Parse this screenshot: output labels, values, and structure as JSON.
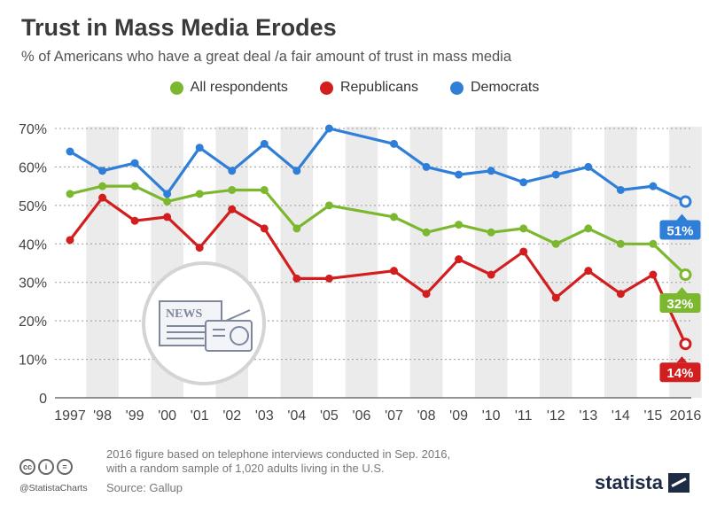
{
  "title": "Trust in Mass Media Erodes",
  "subtitle": "% of Americans who have a great deal /a fair amount of trust in mass media",
  "legend": [
    {
      "label": "All respondents",
      "color": "#7cb82f"
    },
    {
      "label": "Republicans",
      "color": "#d21e1e"
    },
    {
      "label": "Democrats",
      "color": "#2f7ed8"
    }
  ],
  "footer": {
    "note_line1": "2016 figure based on telephone interviews conducted in Sep. 2016,",
    "note_line2": "with a random sample of 1,020 adults living in the U.S.",
    "source": "Source: Gallup",
    "handle": "@StatistaCharts",
    "brand": "statista",
    "cc_icons": [
      "cc",
      "i",
      "="
    ]
  },
  "illustration": {
    "label": "NEWS"
  },
  "chart_data": {
    "type": "line",
    "x": [
      "1997",
      "'98",
      "'99",
      "'00",
      "'01",
      "'02",
      "'03",
      "'04",
      "'05",
      "'06",
      "'07",
      "'08",
      "'09",
      "'10",
      "'11",
      "'12",
      "'13",
      "'14",
      "'15",
      "2016"
    ],
    "ylim": [
      0,
      70
    ],
    "yticks": [
      "0",
      "10%",
      "20%",
      "30%",
      "40%",
      "50%",
      "60%",
      "70%"
    ],
    "grid": true,
    "series": [
      {
        "name": "All respondents",
        "color": "#7cb82f",
        "values": [
          53,
          55,
          55,
          51,
          53,
          54,
          54,
          44,
          50,
          null,
          47,
          43,
          45,
          43,
          44,
          40,
          44,
          40,
          40,
          32
        ],
        "end_label": "32%"
      },
      {
        "name": "Republicans",
        "color": "#d21e1e",
        "values": [
          41,
          52,
          46,
          47,
          39,
          49,
          44,
          31,
          31,
          null,
          33,
          27,
          36,
          32,
          38,
          26,
          33,
          27,
          32,
          14
        ],
        "end_label": "14%"
      },
      {
        "name": "Democrats",
        "color": "#2f7ed8",
        "values": [
          64,
          59,
          61,
          53,
          65,
          59,
          66,
          59,
          70,
          null,
          66,
          60,
          58,
          59,
          56,
          58,
          60,
          54,
          55,
          51
        ],
        "end_label": "51%"
      }
    ]
  }
}
